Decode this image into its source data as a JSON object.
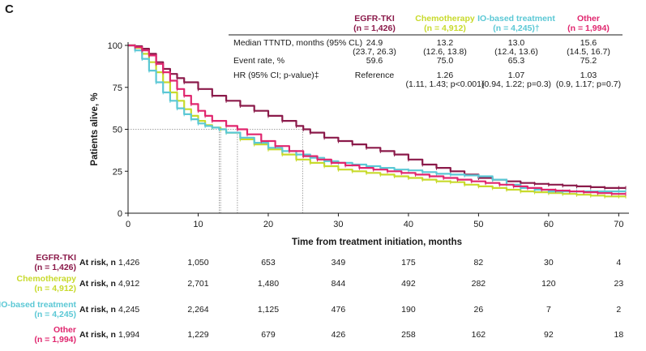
{
  "panel_label": "C",
  "colors": {
    "egfr": "#8B1A4A",
    "chemo": "#C8DA2B",
    "io": "#5BC8D5",
    "other": "#E0266E",
    "axis": "#1a1a1a",
    "ref": "#888888"
  },
  "chart_data": {
    "type": "line",
    "title": "",
    "xlabel": "Time from treatment initiation, months",
    "ylabel": "Patients alive, %",
    "xlim": [
      0,
      71
    ],
    "ylim": [
      0,
      100
    ],
    "x_ticks": [
      0,
      10,
      20,
      30,
      40,
      50,
      60,
      70
    ],
    "y_ticks": [
      0,
      25,
      50,
      75,
      100
    ],
    "grid": false,
    "median_reference": {
      "y": 50,
      "x_values": [
        13.0,
        13.2,
        15.6,
        24.9
      ]
    },
    "series": [
      {
        "name": "EGFR-TKI (n = 1,426)",
        "color_key": "egfr",
        "points": [
          [
            0,
            100
          ],
          [
            1,
            99.5
          ],
          [
            2,
            98
          ],
          [
            3,
            95
          ],
          [
            4,
            90
          ],
          [
            5,
            86
          ],
          [
            6,
            83
          ],
          [
            7,
            80.5
          ],
          [
            8,
            78
          ],
          [
            10,
            74
          ],
          [
            12,
            70
          ],
          [
            14,
            67
          ],
          [
            16,
            64
          ],
          [
            18,
            61
          ],
          [
            20,
            58
          ],
          [
            22,
            55
          ],
          [
            24,
            52
          ],
          [
            25,
            50
          ],
          [
            26,
            48
          ],
          [
            28,
            45
          ],
          [
            30,
            43
          ],
          [
            32,
            41
          ],
          [
            34,
            39
          ],
          [
            36,
            37
          ],
          [
            38,
            35
          ],
          [
            40,
            32
          ],
          [
            42,
            29
          ],
          [
            44,
            27
          ],
          [
            46,
            25
          ],
          [
            48,
            23
          ],
          [
            50,
            21
          ],
          [
            52,
            20
          ],
          [
            54,
            19
          ],
          [
            56,
            18
          ],
          [
            58,
            17.5
          ],
          [
            60,
            17
          ],
          [
            62,
            16.5
          ],
          [
            64,
            16
          ],
          [
            66,
            15.5
          ],
          [
            68,
            15
          ],
          [
            70,
            15
          ],
          [
            71,
            15
          ]
        ]
      },
      {
        "name": "Chemotherapy (n = 4,912)",
        "color_key": "chemo",
        "points": [
          [
            0,
            100
          ],
          [
            1,
            98.5
          ],
          [
            2,
            95
          ],
          [
            3,
            90
          ],
          [
            4,
            84
          ],
          [
            5,
            78
          ],
          [
            6,
            72
          ],
          [
            7,
            67
          ],
          [
            8,
            62
          ],
          [
            9,
            58
          ],
          [
            10,
            55
          ],
          [
            11,
            52.5
          ],
          [
            12,
            51
          ],
          [
            13.2,
            50
          ],
          [
            14,
            48
          ],
          [
            16,
            44
          ],
          [
            18,
            41
          ],
          [
            20,
            38
          ],
          [
            22,
            35
          ],
          [
            24,
            32
          ],
          [
            26,
            30
          ],
          [
            28,
            28
          ],
          [
            30,
            26
          ],
          [
            32,
            25
          ],
          [
            34,
            24
          ],
          [
            36,
            23
          ],
          [
            38,
            22
          ],
          [
            40,
            21
          ],
          [
            42,
            20
          ],
          [
            44,
            19
          ],
          [
            46,
            18.5
          ],
          [
            48,
            17
          ],
          [
            50,
            16
          ],
          [
            52,
            15
          ],
          [
            54,
            14
          ],
          [
            56,
            13
          ],
          [
            58,
            12.5
          ],
          [
            60,
            12
          ],
          [
            62,
            11.5
          ],
          [
            64,
            11
          ],
          [
            66,
            10.5
          ],
          [
            68,
            10
          ],
          [
            70,
            10
          ],
          [
            71,
            10
          ]
        ]
      },
      {
        "name": "IO-based treatment (n = 4,245)",
        "color_key": "io",
        "points": [
          [
            0,
            100
          ],
          [
            1,
            97
          ],
          [
            2,
            92
          ],
          [
            3,
            85
          ],
          [
            4,
            78
          ],
          [
            5,
            72
          ],
          [
            6,
            67
          ],
          [
            7,
            62.5
          ],
          [
            8,
            59
          ],
          [
            9,
            56
          ],
          [
            10,
            53.5
          ],
          [
            11,
            52
          ],
          [
            12,
            51
          ],
          [
            13.0,
            50
          ],
          [
            14,
            48
          ],
          [
            16,
            45
          ],
          [
            18,
            42
          ],
          [
            20,
            39
          ],
          [
            22,
            37
          ],
          [
            24,
            35
          ],
          [
            26,
            33
          ],
          [
            28,
            31
          ],
          [
            30,
            30
          ],
          [
            32,
            29
          ],
          [
            34,
            28
          ],
          [
            36,
            27
          ],
          [
            38,
            26
          ],
          [
            40,
            25.5
          ],
          [
            42,
            24.5
          ],
          [
            44,
            23.5
          ],
          [
            46,
            23
          ],
          [
            48,
            22.5
          ],
          [
            50,
            22
          ],
          [
            52,
            20
          ],
          [
            54,
            17
          ],
          [
            56,
            15
          ],
          [
            58,
            14
          ],
          [
            60,
            13
          ],
          [
            62,
            13
          ],
          [
            64,
            13
          ],
          [
            66,
            13
          ],
          [
            68,
            13
          ],
          [
            70,
            13
          ],
          [
            71,
            13
          ]
        ]
      },
      {
        "name": "Other (n = 1,994)",
        "color_key": "other",
        "points": [
          [
            0,
            100
          ],
          [
            1,
            99
          ],
          [
            2,
            97
          ],
          [
            3,
            94
          ],
          [
            4,
            89
          ],
          [
            5,
            84
          ],
          [
            6,
            79
          ],
          [
            7,
            74
          ],
          [
            8,
            70
          ],
          [
            9,
            65
          ],
          [
            10,
            61
          ],
          [
            11,
            58
          ],
          [
            12,
            55
          ],
          [
            14,
            52
          ],
          [
            15.6,
            50
          ],
          [
            17,
            47
          ],
          [
            19,
            43
          ],
          [
            21,
            40
          ],
          [
            23,
            37
          ],
          [
            25,
            34
          ],
          [
            27,
            32
          ],
          [
            29,
            30
          ],
          [
            31,
            28.5
          ],
          [
            33,
            27
          ],
          [
            35,
            26
          ],
          [
            37,
            25
          ],
          [
            39,
            24
          ],
          [
            41,
            23
          ],
          [
            43,
            22
          ],
          [
            45,
            21
          ],
          [
            47,
            20
          ],
          [
            49,
            19
          ],
          [
            51,
            18
          ],
          [
            53,
            17
          ],
          [
            55,
            16
          ],
          [
            57,
            15
          ],
          [
            59,
            14
          ],
          [
            61,
            13.5
          ],
          [
            63,
            13
          ],
          [
            65,
            12.5
          ],
          [
            67,
            12
          ],
          [
            69,
            11.5
          ],
          [
            71,
            11.5
          ]
        ]
      }
    ]
  },
  "stats_table": {
    "groups": [
      {
        "label": "EGFR-TKI",
        "n": "(n = 1,426)",
        "color_key": "egfr"
      },
      {
        "label": "Chemotherapy",
        "n": "(n = 4,912)",
        "color_key": "chemo"
      },
      {
        "label": "IO-based treatment",
        "n": "(n = 4,245)†",
        "color_key": "io"
      },
      {
        "label": "Other",
        "n": "(n = 1,994)",
        "color_key": "other"
      }
    ],
    "rows": [
      {
        "label": "Median TTNTD, months (95% CL)",
        "cells": [
          [
            "24.9",
            "(23.7, 26.3)"
          ],
          [
            "13.2",
            "(12.6, 13.8)"
          ],
          [
            "13.0",
            "(12.4, 13.6)"
          ],
          [
            "15.6",
            "(14.5, 16.7)"
          ]
        ]
      },
      {
        "label": "Event rate, %",
        "cells": [
          [
            "59.6",
            ""
          ],
          [
            "75.0",
            ""
          ],
          [
            "65.3",
            ""
          ],
          [
            "75.2",
            ""
          ]
        ]
      },
      {
        "label": "HR (95% CI; p-value)‡",
        "cells": [
          [
            "Reference",
            ""
          ],
          [
            "1.26",
            "(1.11, 1.43; p<0.001)"
          ],
          [
            "1.07",
            "(0.94, 1.22; p=0.3)"
          ],
          [
            "1.03",
            "(0.9, 1.17; p=0.7)"
          ]
        ]
      }
    ]
  },
  "at_risk": {
    "label": "At risk, n",
    "rows": [
      {
        "group": "EGFR-TKI",
        "n": "(n = 1,426)",
        "color_key": "egfr",
        "values": [
          "1,426",
          "1,050",
          "653",
          "349",
          "175",
          "82",
          "30",
          "4"
        ]
      },
      {
        "group": "Chemotherapy",
        "n": "(n = 4,912)",
        "color_key": "chemo",
        "values": [
          "4,912",
          "2,701",
          "1,480",
          "844",
          "492",
          "282",
          "120",
          "23"
        ]
      },
      {
        "group": "IO-based treatment",
        "n": "(n = 4,245)",
        "color_key": "io",
        "values": [
          "4,245",
          "2,264",
          "1,125",
          "476",
          "190",
          "26",
          "7",
          "2"
        ]
      },
      {
        "group": "Other",
        "n": "(n = 1,994)",
        "color_key": "other",
        "values": [
          "1,994",
          "1,229",
          "679",
          "426",
          "258",
          "162",
          "92",
          "18"
        ]
      }
    ]
  }
}
